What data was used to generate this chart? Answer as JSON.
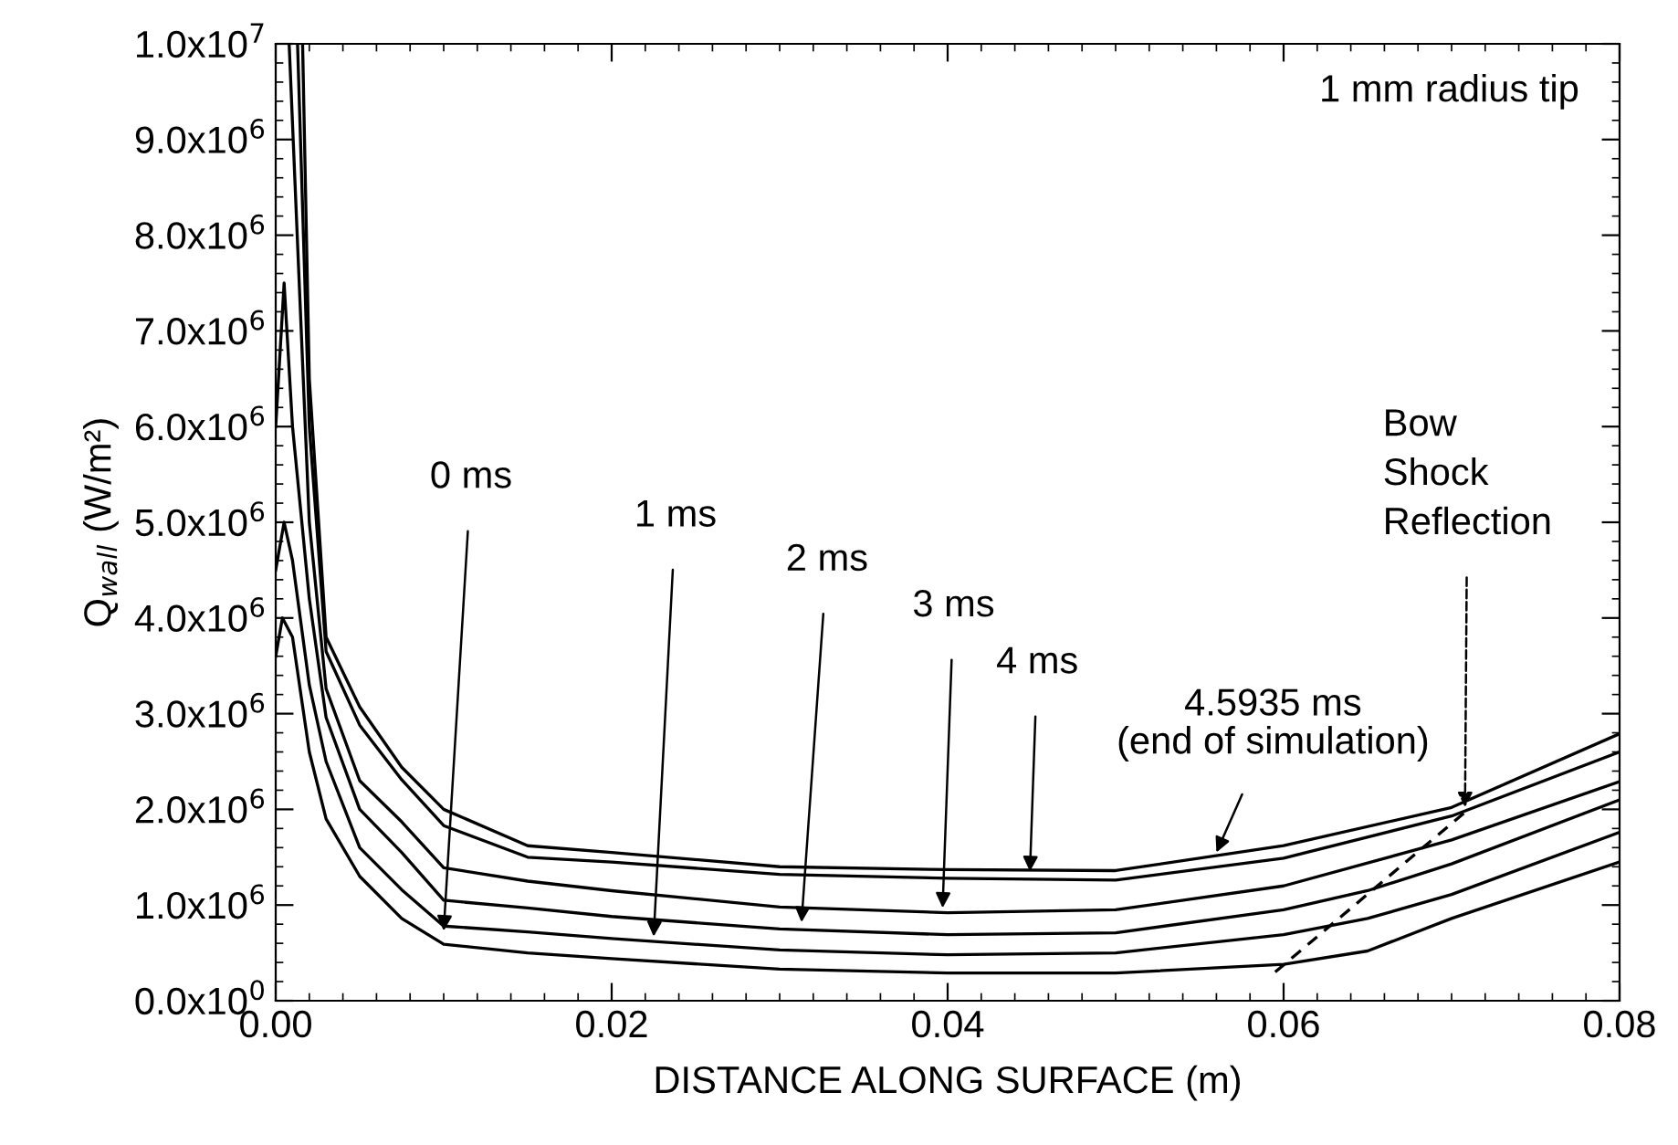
{
  "chart_data": {
    "type": "line",
    "xlabel": "DISTANCE ALONG SURFACE (m)",
    "ylabel": "Q$_{wall}$ (W/m²)",
    "xlim": [
      0,
      0.08
    ],
    "xticks": [
      {
        "value": 0,
        "label": "0.00"
      },
      {
        "value": 0.02,
        "label": "0.02"
      },
      {
        "value": 0.04,
        "label": "0.04"
      },
      {
        "value": 0.06,
        "label": "0.06"
      },
      {
        "value": 0.08,
        "label": "0.08"
      }
    ],
    "ylim": [
      0,
      10000000.0
    ],
    "yticks": [
      {
        "value": 0,
        "label": "0.0x10$^{0}$"
      },
      {
        "value": 1000000.0,
        "label": "1.0x10$^{6}$"
      },
      {
        "value": 2000000.0,
        "label": "2.0x10$^{6}$"
      },
      {
        "value": 3000000.0,
        "label": "3.0x10$^{6}$"
      },
      {
        "value": 4000000.0,
        "label": "4.0x10$^{6}$"
      },
      {
        "value": 5000000.0,
        "label": "5.0x10$^{6}$"
      },
      {
        "value": 6000000.0,
        "label": "6.0x10$^{6}$"
      },
      {
        "value": 7000000.0,
        "label": "7.0x10$^{6}$"
      },
      {
        "value": 8000000.0,
        "label": "8.0x10$^{6}$"
      },
      {
        "value": 9000000.0,
        "label": "9.0x10$^{6}$"
      },
      {
        "value": 10000000.0,
        "label": "1.0x10$^{7}$"
      }
    ],
    "grid": false,
    "legend": false,
    "marker": "none",
    "line_style": "solid",
    "series": [
      {
        "color": "#000000",
        "x": [
          0,
          0.0004,
          0.001,
          0.002,
          0.003,
          0.005,
          0.0075,
          0.01,
          0.015,
          0.02,
          0.03,
          0.04,
          0.05,
          0.06,
          0.065,
          0.07,
          0.08
        ],
        "values": [
          3600000.0,
          4000000.0,
          3800000.0,
          2600000.0,
          1900000.0,
          1300000.0,
          860000.0,
          590000.0,
          500000.0,
          440000.0,
          330000.0,
          290000.0,
          290000.0,
          380000.0,
          520000.0,
          860000.0,
          1450000.0
        ]
      },
      {
        "color": "#000000",
        "x": [
          0,
          0.0005,
          0.001,
          0.002,
          0.003,
          0.005,
          0.0075,
          0.01,
          0.015,
          0.02,
          0.03,
          0.04,
          0.05,
          0.06,
          0.065,
          0.07,
          0.08
        ],
        "values": [
          4500000.0,
          5000000.0,
          4600000.0,
          3300000.0,
          2500000.0,
          1600000.0,
          1160000.0,
          780000.0,
          720000.0,
          650000.0,
          530000.0,
          480000.0,
          500000.0,
          690000.0,
          860000.0,
          1110000.0,
          1760000.0
        ]
      },
      {
        "color": "#000000",
        "x": [
          0,
          0.0005,
          0.001,
          0.002,
          0.003,
          0.005,
          0.0075,
          0.01,
          0.015,
          0.02,
          0.03,
          0.04,
          0.05,
          0.06,
          0.065,
          0.07,
          0.08
        ],
        "values": [
          6000000.0,
          7500000.0,
          6000000.0,
          4200000.0,
          2960000.0,
          2000000.0,
          1550000.0,
          1050000.0,
          970000.0,
          880000.0,
          750000.0,
          690000.0,
          710000.0,
          950000.0,
          1150000.0,
          1430000.0,
          2100000.0
        ]
      },
      {
        "color": "#000000",
        "x": [
          0.0008,
          0.002,
          0.003,
          0.005,
          0.0075,
          0.01,
          0.015,
          0.02,
          0.03,
          0.04,
          0.05,
          0.06,
          0.07,
          0.08
        ],
        "values": [
          10000000.0,
          5000000.0,
          3260000.0,
          2300000.0,
          1870000.0,
          1390000.0,
          1250000.0,
          1150000.0,
          980000.0,
          920000.0,
          950000.0,
          1200000.0,
          1680000.0,
          2290000.0
        ]
      },
      {
        "color": "#000000",
        "x": [
          0.0013,
          0.002,
          0.003,
          0.005,
          0.0075,
          0.01,
          0.015,
          0.02,
          0.03,
          0.04,
          0.05,
          0.06,
          0.07,
          0.08
        ],
        "values": [
          10000000.0,
          6000000.0,
          3650000.0,
          2880000.0,
          2310000.0,
          1830000.0,
          1500000.0,
          1450000.0,
          1320000.0,
          1280000.0,
          1260000.0,
          1490000.0,
          1930000.0,
          2600000.0
        ]
      },
      {
        "color": "#000000",
        "x": [
          0.0016,
          0.002,
          0.003,
          0.005,
          0.0075,
          0.01,
          0.015,
          0.02,
          0.03,
          0.04,
          0.05,
          0.06,
          0.07,
          0.08
        ],
        "values": [
          10000000.0,
          6500000.0,
          3800000.0,
          3070000.0,
          2440000.0,
          2000000.0,
          1620000.0,
          1550000.0,
          1400000.0,
          1370000.0,
          1360000.0,
          1620000.0,
          2020000.0,
          2790000.0
        ]
      },
      {
        "color": "#000000",
        "line_style": "dashed",
        "x": [
          0.0595,
          0.071
        ],
        "values": [
          300000.0,
          2000000.0
        ]
      }
    ],
    "annotations": [
      {
        "text": "0 ms",
        "x": 0.01,
        "y": 730000.0
      },
      {
        "text": "1 ms",
        "x": 0.0225,
        "y": 670000.0
      },
      {
        "text": "2 ms",
        "x": 0.0313,
        "y": 820000.0
      },
      {
        "text": "3 ms",
        "x": 0.0397,
        "y": 970000.0
      },
      {
        "text": "4 ms",
        "x": 0.0449,
        "y": 1350000.0
      },
      {
        "text": "4.5935 ms\n(end of simulation)",
        "x": 0.056,
        "y": 1550000.0
      },
      {
        "text": "Bow\nShock\nReflection",
        "x": 0.0708,
        "y": 2020000.0
      },
      "1 mm radius tip"
    ]
  }
}
